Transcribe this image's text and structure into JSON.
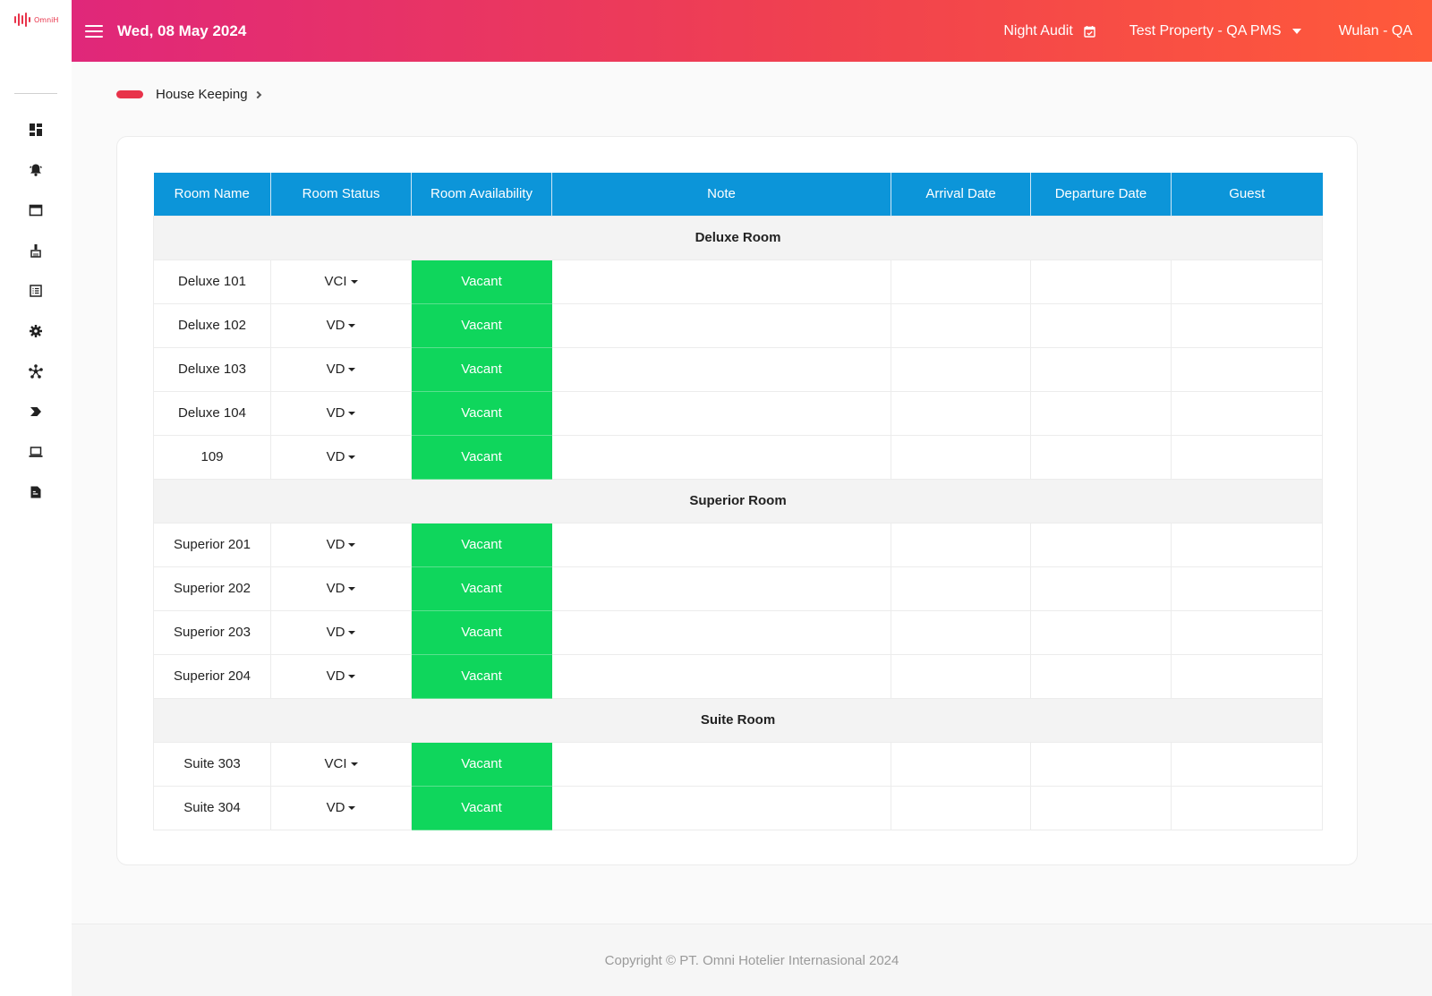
{
  "brand": {
    "logo_text": "OmniH",
    "accent_color": "#e8334a"
  },
  "header": {
    "date": "Wed, 08 May 2024",
    "night_audit_label": "Night Audit",
    "property_label": "Test Property - QA PMS",
    "user_label": "Wulan - QA",
    "gradient_colors": [
      "#e0277a",
      "#f0414f",
      "#ff5a3a"
    ]
  },
  "sidebar": {
    "items": [
      {
        "icon": "dashboard-icon"
      },
      {
        "icon": "bell-icon"
      },
      {
        "icon": "window-icon"
      },
      {
        "icon": "broom-icon"
      },
      {
        "icon": "list-icon"
      },
      {
        "icon": "gear-icon"
      },
      {
        "icon": "network-icon"
      },
      {
        "icon": "tag-arrow-icon"
      },
      {
        "icon": "laptop-icon"
      },
      {
        "icon": "report-icon"
      }
    ]
  },
  "breadcrumb": {
    "label": "House Keeping"
  },
  "table": {
    "header_color": "#0c95d9",
    "vacant_color": "#0fd65c",
    "columns": [
      "Room Name",
      "Room Status",
      "Room Availability",
      "Note",
      "Arrival Date",
      "Departure Date",
      "Guest"
    ],
    "groups": [
      {
        "name": "Deluxe Room",
        "rooms": [
          {
            "name": "Deluxe 101",
            "status": "VCI",
            "availability": "Vacant",
            "note": "",
            "arrival": "",
            "departure": "",
            "guest": ""
          },
          {
            "name": "Deluxe 102",
            "status": "VD",
            "availability": "Vacant",
            "note": "",
            "arrival": "",
            "departure": "",
            "guest": ""
          },
          {
            "name": "Deluxe 103",
            "status": "VD",
            "availability": "Vacant",
            "note": "",
            "arrival": "",
            "departure": "",
            "guest": ""
          },
          {
            "name": "Deluxe 104",
            "status": "VD",
            "availability": "Vacant",
            "note": "",
            "arrival": "",
            "departure": "",
            "guest": ""
          },
          {
            "name": "109",
            "status": "VD",
            "availability": "Vacant",
            "note": "",
            "arrival": "",
            "departure": "",
            "guest": ""
          }
        ]
      },
      {
        "name": "Superior Room",
        "rooms": [
          {
            "name": "Superior 201",
            "status": "VD",
            "availability": "Vacant",
            "note": "",
            "arrival": "",
            "departure": "",
            "guest": ""
          },
          {
            "name": "Superior 202",
            "status": "VD",
            "availability": "Vacant",
            "note": "",
            "arrival": "",
            "departure": "",
            "guest": ""
          },
          {
            "name": "Superior 203",
            "status": "VD",
            "availability": "Vacant",
            "note": "",
            "arrival": "",
            "departure": "",
            "guest": ""
          },
          {
            "name": "Superior 204",
            "status": "VD",
            "availability": "Vacant",
            "note": "",
            "arrival": "",
            "departure": "",
            "guest": ""
          }
        ]
      },
      {
        "name": "Suite Room",
        "rooms": [
          {
            "name": "Suite 303",
            "status": "VCI",
            "availability": "Vacant",
            "note": "",
            "arrival": "",
            "departure": "",
            "guest": ""
          },
          {
            "name": "Suite 304",
            "status": "VD",
            "availability": "Vacant",
            "note": "",
            "arrival": "",
            "departure": "",
            "guest": ""
          }
        ]
      }
    ]
  },
  "footer": {
    "copyright": "Copyright © PT. Omni Hotelier Internasional 2024"
  }
}
